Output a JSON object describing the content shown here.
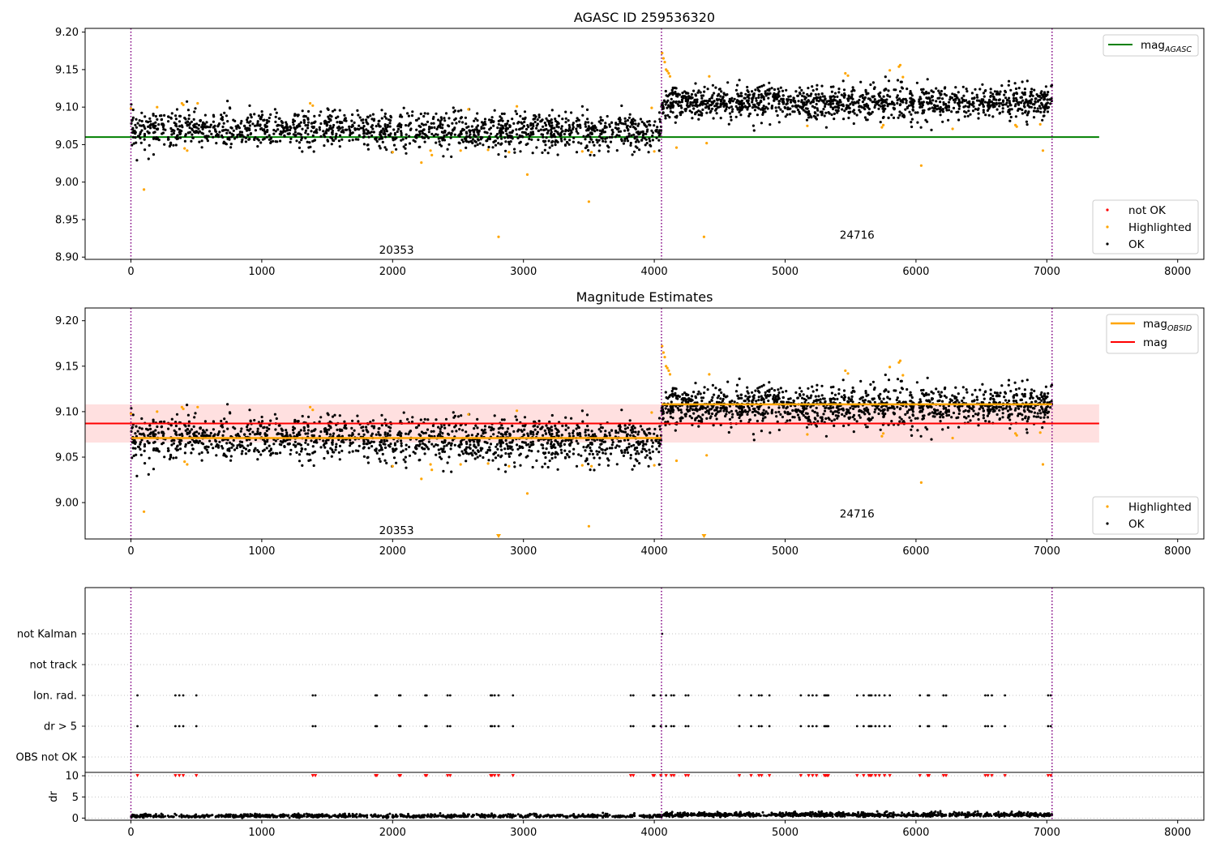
{
  "colors": {
    "ok": "#000000",
    "highlighted": "#FFA500",
    "not_ok": "#FF0000",
    "agasc_line": "#008000",
    "obsid_line": "#FFA500",
    "mag_line": "#FF0000",
    "mag_band": "#FFE0E0",
    "obsid_marker": "#800080",
    "grid": "#B0B0B0"
  },
  "chart_data": [
    {
      "type": "scatter",
      "title": "AGASC ID 259536320",
      "xlim": [
        -350,
        8200
      ],
      "ylim": [
        8.897,
        9.205
      ],
      "xticks": [
        "0",
        "1000",
        "2000",
        "3000",
        "4000",
        "5000",
        "6000",
        "7000",
        "8000"
      ],
      "yticks": [
        "8.90",
        "8.95",
        "9.00",
        "9.05",
        "9.10",
        "9.15",
        "9.20"
      ],
      "obsid_boundaries": [
        0,
        4055,
        7040
      ],
      "annotations": [
        {
          "text": "20353",
          "x": 2030,
          "y": 8.91
        },
        {
          "text": "24716",
          "x": 5550,
          "y": 8.93
        }
      ],
      "lines": [
        {
          "name": "mag_AGASC",
          "x": [
            -350,
            7400
          ],
          "y": [
            9.06,
            9.06
          ]
        }
      ],
      "legend": {
        "top-right": [
          {
            "label": "mag",
            "sub": "AGASC",
            "kind": "line",
            "color": "agasc_line"
          }
        ],
        "bottom-right": [
          {
            "label": "not OK",
            "kind": "dot",
            "color": "not_ok"
          },
          {
            "label": "Highlighted",
            "kind": "dot",
            "color": "highlighted"
          },
          {
            "label": "OK",
            "kind": "dot",
            "color": "ok"
          }
        ]
      },
      "series": [
        {
          "name": "OK",
          "segments": [
            {
              "x_range": [
                0,
                4055
              ],
              "mean": 9.071,
              "spread": 0.012,
              "trend": -0.004,
              "n": 1500
            },
            {
              "x_range": [
                4055,
                7040
              ],
              "mean": 9.106,
              "spread": 0.011,
              "trend": 0.0,
              "n": 1300
            }
          ]
        },
        {
          "name": "Highlighted",
          "points": [
            [
              0,
              9.098
            ],
            [
              100,
              8.99
            ],
            [
              200,
              9.1
            ],
            [
              390,
              9.105
            ],
            [
              400,
              9.103
            ],
            [
              410,
              9.045
            ],
            [
              430,
              9.042
            ],
            [
              510,
              9.105
            ],
            [
              1370,
              9.105
            ],
            [
              1390,
              9.102
            ],
            [
              2000,
              9.04
            ],
            [
              2220,
              9.026
            ],
            [
              2290,
              9.042
            ],
            [
              2300,
              9.036
            ],
            [
              2520,
              9.042
            ],
            [
              2580,
              9.097
            ],
            [
              2730,
              9.043
            ],
            [
              2810,
              8.927
            ],
            [
              2890,
              9.04
            ],
            [
              2950,
              9.101
            ],
            [
              3030,
              9.01
            ],
            [
              3450,
              9.041
            ],
            [
              3500,
              8.974
            ],
            [
              3520,
              9.04
            ],
            [
              3980,
              9.099
            ],
            [
              4000,
              9.041
            ],
            [
              4060,
              9.172
            ],
            [
              4070,
              9.165
            ],
            [
              4080,
              9.16
            ],
            [
              4090,
              9.15
            ],
            [
              4100,
              9.148
            ],
            [
              4110,
              9.145
            ],
            [
              4120,
              9.141
            ],
            [
              4170,
              9.046
            ],
            [
              4380,
              8.927
            ],
            [
              4400,
              9.052
            ],
            [
              4420,
              9.141
            ],
            [
              5170,
              9.075
            ],
            [
              5460,
              9.145
            ],
            [
              5480,
              9.142
            ],
            [
              5740,
              9.073
            ],
            [
              5750,
              9.076
            ],
            [
              5870,
              9.154
            ],
            [
              5880,
              9.156
            ],
            [
              5800,
              9.149
            ],
            [
              5900,
              9.14
            ],
            [
              6040,
              9.022
            ],
            [
              6280,
              9.071
            ],
            [
              6760,
              9.076
            ],
            [
              6770,
              9.074
            ],
            [
              6950,
              9.077
            ],
            [
              6970,
              9.042
            ]
          ]
        }
      ]
    },
    {
      "type": "scatter",
      "title": "Magnitude Estimates",
      "xlim": [
        -350,
        8200
      ],
      "ylim": [
        8.96,
        9.214
      ],
      "xticks": [
        "0",
        "1000",
        "2000",
        "3000",
        "4000",
        "5000",
        "6000",
        "7000",
        "8000"
      ],
      "yticks": [
        "9.00",
        "9.05",
        "9.10",
        "9.15",
        "9.20"
      ],
      "obsid_boundaries": [
        0,
        4055,
        7040
      ],
      "annotations": [
        {
          "text": "20353",
          "x": 2030,
          "y": 8.97
        },
        {
          "text": "24716",
          "x": 5550,
          "y": 8.988
        }
      ],
      "lines": [
        {
          "name": "mag_OBSID",
          "segments": [
            {
              "x": [
                0,
                4055
              ],
              "y": 9.071
            },
            {
              "x": [
                4055,
                7040
              ],
              "y": 9.108
            }
          ]
        },
        {
          "name": "mag",
          "x": [
            -350,
            7400
          ],
          "y": [
            9.087,
            9.087
          ]
        }
      ],
      "mag_band": {
        "x": [
          -350,
          7400
        ],
        "y": [
          9.066,
          9.108
        ]
      },
      "legend": {
        "top-right": [
          {
            "label": "mag",
            "sub": "OBSID",
            "kind": "line",
            "color": "obsid_line"
          },
          {
            "label": "mag",
            "kind": "line",
            "color": "mag_line"
          }
        ],
        "bottom-right": [
          {
            "label": "Highlighted",
            "kind": "dot",
            "color": "highlighted"
          },
          {
            "label": "OK",
            "kind": "dot",
            "color": "ok"
          }
        ]
      },
      "series": [
        {
          "name": "OK",
          "same_as_panel": 0
        },
        {
          "name": "Highlighted",
          "same_as_panel": 0
        }
      ]
    },
    {
      "type": "scatter",
      "title": "",
      "xlim": [
        -350,
        8200
      ],
      "ylim": [
        -0.5,
        5.5
      ],
      "xticks": [
        "0",
        "1000",
        "2000",
        "3000",
        "4000",
        "5000",
        "6000",
        "7000",
        "8000"
      ],
      "yticks": [
        "OBS not OK",
        "dr > 5",
        "Ion. rad.",
        "not track",
        "not Kalman"
      ],
      "grid": true,
      "obsid_boundaries": [
        0,
        4055,
        7040
      ],
      "flag_x": [
        50,
        340,
        370,
        400,
        500,
        1390,
        1410,
        1870,
        1880,
        2050,
        2060,
        2250,
        2260,
        2420,
        2440,
        2750,
        2760,
        2780,
        2810,
        2920,
        3820,
        3840,
        3990,
        4000,
        4050,
        4090,
        4130,
        4150,
        4240,
        4260,
        4650,
        4740,
        4800,
        4820,
        4880,
        5120,
        5180,
        5210,
        5240,
        5300,
        5310,
        5320,
        5330,
        5550,
        5600,
        5640,
        5650,
        5660,
        5690,
        5720,
        5760,
        5800,
        6030,
        6090,
        6100,
        6210,
        6230,
        6530,
        6550,
        6580,
        6680,
        7010,
        7030
      ],
      "flag_rows": {
        "dr > 5": "flag_x",
        "Ion. rad.": "flag_x"
      },
      "not_kalman_x": [
        4060
      ]
    },
    {
      "type": "scatter",
      "title": "",
      "ylabel": "dr",
      "xlim": [
        -350,
        8200
      ],
      "ylim": [
        -0.5,
        10.8
      ],
      "xticks": [
        "0",
        "1000",
        "2000",
        "3000",
        "4000",
        "5000",
        "6000",
        "7000",
        "8000"
      ],
      "yticks": [
        "0",
        "5",
        "10"
      ],
      "grid": true,
      "obsid_boundaries": [
        0,
        4055,
        7040
      ],
      "clip_value": 10,
      "series": [
        {
          "name": "dr",
          "segments": [
            {
              "x_range": [
                0,
                4055
              ],
              "mean": 0.45,
              "spread": 0.25,
              "n": 900
            },
            {
              "x_range": [
                4055,
                7040
              ],
              "mean": 0.75,
              "spread": 0.3,
              "n": 900
            }
          ]
        },
        {
          "name": "dr clipped",
          "same_as": "flag_x",
          "value": 10
        }
      ]
    }
  ]
}
